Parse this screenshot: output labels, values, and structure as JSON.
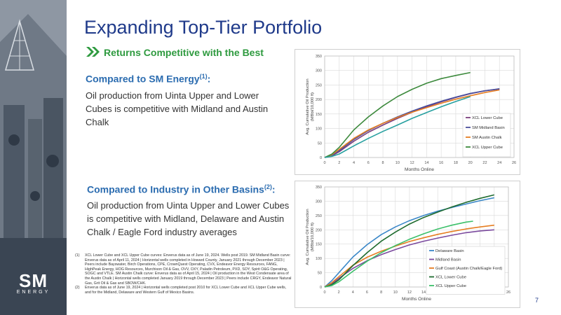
{
  "slide": {
    "title": "Expanding Top-Tier Portfolio",
    "subtitle": "Returns Competitive with the Best",
    "page_number": "7",
    "logo_main": "SM",
    "logo_sub": "ENERGY"
  },
  "section1": {
    "heading": "Compared to SM Energy",
    "heading_sup": "(1)",
    "heading_suffix": ":",
    "body": "Oil production from Uinta Upper and Lower Cubes is competitive with Midland and Austin Chalk"
  },
  "section2": {
    "heading": "Compared to Industry in Other Basins",
    "heading_sup": "(2)",
    "heading_suffix": ":",
    "body": "Oil production from Uinta Upper and Lower Cubes is competitive with Midland, Delaware and Austin Chalk / Eagle Ford industry averages"
  },
  "footnotes": [
    {
      "num": "(1)",
      "text": "XCL Lower Cube and XCL Upper Cube curves: Enverus data as of June 19, 2024. Wells post 2019. SM Midland Basin curve: Enverus data as of April 11, 2024 | Horizontal wells completed in Howard County, January 2021 through December 2023 | Peers include Bayswater, Birch Operations, CPE, CrownQuest Operating, CVX, Endeavor Energy Resources, FANG, HighPeak Energy, HOG Resources, Murchison Oil & Gas, OVV, OXY, Paladin Petroleum, PXD, SOY, Spirit O&G Operating, SOGC and VTLE. SM Austin Chalk curve: Enverus data as of April 15, 2024 | Oil production in the West Condensate area of the Austin Chalk | Horizontal wells completed January 2019 through December 2023 | Peers include CRGY, Endeavor Natural Gas, Grit Oil & Gas and SBOW/CHK."
    },
    {
      "num": "(2)",
      "text": "Enverus data as of June 19, 2024 | Horizontal wells completed post 2010 for XCL Lower Cube and XCL Upper Cube wells, and for the Midland, Delaware and Western Gulf of Mexico Basins."
    }
  ],
  "chart_data": [
    {
      "type": "line",
      "title": "",
      "xlabel": "Months Online",
      "ylabel": "Avg. Cumulative Oil Production (MBbl/10,000 ft)",
      "xlim": [
        0,
        26
      ],
      "ylim": [
        0,
        350
      ],
      "xticks": [
        0,
        2,
        4,
        6,
        8,
        10,
        12,
        14,
        16,
        18,
        20,
        22,
        24,
        26
      ],
      "yticks": [
        0,
        50,
        100,
        150,
        200,
        250,
        300,
        350
      ],
      "grid": true,
      "legend_position": "bottom-right",
      "series": [
        {
          "name": "XCL Lower Cube",
          "color": "#7b3f7e",
          "x": [
            0,
            1,
            2,
            4,
            6,
            8,
            10,
            12,
            14,
            16,
            18,
            20,
            22,
            24
          ],
          "y": [
            0,
            6,
            20,
            56,
            87,
            112,
            135,
            156,
            175,
            192,
            207,
            220,
            230,
            236
          ]
        },
        {
          "name": "SM Midland Basin",
          "color": "#4a4f9c",
          "x": [
            0,
            1,
            2,
            4,
            6,
            8,
            10,
            12,
            14,
            16,
            18,
            20,
            22,
            24
          ],
          "y": [
            0,
            8,
            24,
            62,
            93,
            118,
            140,
            160,
            178,
            194,
            208,
            221,
            230,
            237
          ]
        },
        {
          "name": "SM Austin Chalk",
          "color": "#e67e22",
          "x": [
            0,
            1,
            2,
            4,
            6,
            8,
            10,
            12,
            14,
            16,
            18,
            20,
            22,
            24
          ],
          "y": [
            0,
            10,
            28,
            66,
            95,
            118,
            138,
            156,
            172,
            187,
            201,
            213,
            224,
            233
          ]
        },
        {
          "name": "XCL Upper Cube",
          "color": "#3d8a3d",
          "x": [
            0,
            1,
            2,
            4,
            6,
            8,
            10,
            12,
            14,
            16,
            18,
            20
          ],
          "y": [
            0,
            12,
            35,
            95,
            140,
            178,
            210,
            235,
            256,
            272,
            283,
            293
          ]
        },
        {
          "name": "",
          "color": "#27a0a0",
          "x": [
            0,
            1,
            2,
            4,
            6,
            8,
            10,
            12,
            14,
            16,
            18,
            20
          ],
          "y": [
            0,
            4,
            12,
            40,
            66,
            90,
            112,
            135,
            155,
            175,
            193,
            210
          ]
        }
      ]
    },
    {
      "type": "line",
      "title": "",
      "xlabel": "Months Online",
      "ylabel": "Avg. Cumulative Oil Production (MBbl/10,000 ft)",
      "xlim": [
        0,
        26
      ],
      "ylim": [
        0,
        350
      ],
      "xticks": [
        0,
        2,
        4,
        6,
        8,
        10,
        12,
        14,
        16,
        18,
        20,
        22,
        24,
        26
      ],
      "yticks": [
        0,
        50,
        100,
        150,
        200,
        250,
        300,
        350
      ],
      "grid": true,
      "legend_position": "bottom-right",
      "series": [
        {
          "name": "Delaware Basin",
          "color": "#3a87c8",
          "x": [
            0,
            1,
            2,
            4,
            6,
            8,
            10,
            12,
            14,
            16,
            18,
            20,
            22,
            24
          ],
          "y": [
            0,
            22,
            50,
            105,
            148,
            183,
            210,
            232,
            250,
            265,
            278,
            290,
            302,
            312
          ]
        },
        {
          "name": "Midland Basin",
          "color": "#7b4a9e",
          "x": [
            0,
            1,
            2,
            4,
            6,
            8,
            10,
            12,
            14,
            16,
            18,
            20,
            22,
            24
          ],
          "y": [
            0,
            12,
            30,
            65,
            92,
            113,
            131,
            147,
            160,
            171,
            181,
            190,
            196,
            200
          ]
        },
        {
          "name": "Gulf Coast (Austin Chalk/Eagle Ford)",
          "color": "#e67e22",
          "x": [
            0,
            1,
            2,
            4,
            6,
            8,
            10,
            12,
            14,
            16,
            18,
            20,
            22,
            24
          ],
          "y": [
            0,
            15,
            36,
            76,
            104,
            125,
            143,
            159,
            172,
            184,
            194,
            203,
            210,
            216
          ]
        },
        {
          "name": "XCL Lower Cube",
          "color": "#1e6b2e",
          "x": [
            0,
            1,
            2,
            4,
            6,
            8,
            10,
            12,
            14,
            16,
            18,
            20,
            22,
            24
          ],
          "y": [
            0,
            8,
            25,
            75,
            120,
            160,
            192,
            220,
            243,
            262,
            280,
            296,
            310,
            322
          ]
        },
        {
          "name": "XCL Upper Cube",
          "color": "#3cc06a",
          "x": [
            0,
            1,
            2,
            4,
            6,
            8,
            10,
            12,
            14,
            16,
            18,
            20,
            21
          ],
          "y": [
            0,
            5,
            18,
            55,
            90,
            120,
            145,
            167,
            186,
            203,
            216,
            227,
            230
          ]
        }
      ]
    }
  ]
}
